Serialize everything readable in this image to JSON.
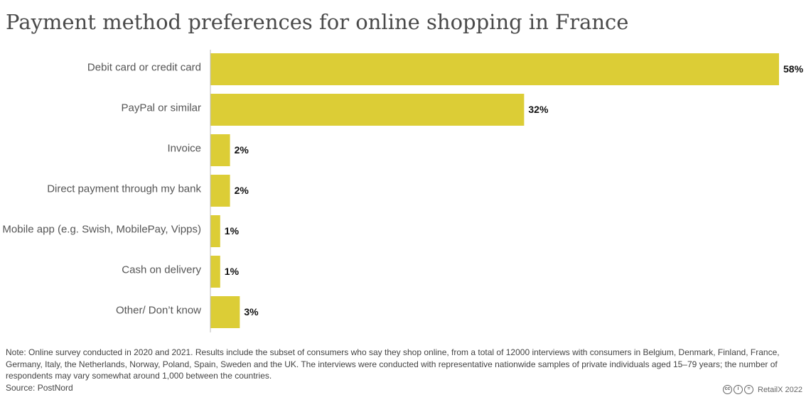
{
  "title": "Payment method preferences for online shopping in France",
  "colors": {
    "bar": "#dccd36",
    "axis": "#bbbbbb"
  },
  "chart_data": {
    "type": "bar",
    "orientation": "horizontal",
    "title": "Payment method preferences for online shopping in France",
    "categories": [
      "Debit card or credit card",
      "PayPal or similar",
      "Invoice",
      "Direct payment through my bank",
      "Mobile app (e.g. Swish, MobilePay, Vipps)",
      "Cash on delivery",
      "Other/ Don’t know"
    ],
    "values": [
      58,
      32,
      2,
      2,
      1,
      1,
      3
    ],
    "value_labels": [
      "58%",
      "32%",
      "2%",
      "2%",
      "1%",
      "1%",
      "3%"
    ],
    "unit": "%",
    "xlim": [
      0,
      58
    ],
    "grid": false,
    "legend": "none"
  },
  "footer": {
    "note": "Note: Online survey conducted in 2020 and 2021. Results include the subset of consumers who say they shop online, from a total of 12000 interviews with consumers in Belgium, Denmark, Finland, France, Germany, Italy, the Netherlands, Norway, Poland, Spain, Sweden and the UK. The interviews were conducted with representative nationwide samples of private individuals aged 15–79 years; the number of respondents may vary somewhat around 1,000 between the countries.",
    "source": "Source: PostNord",
    "credit": "RetailX 2022",
    "license_icons": [
      "cc-icon",
      "by-icon",
      "nd-icon"
    ],
    "license_glyphs": [
      "cc",
      "i",
      "="
    ]
  }
}
